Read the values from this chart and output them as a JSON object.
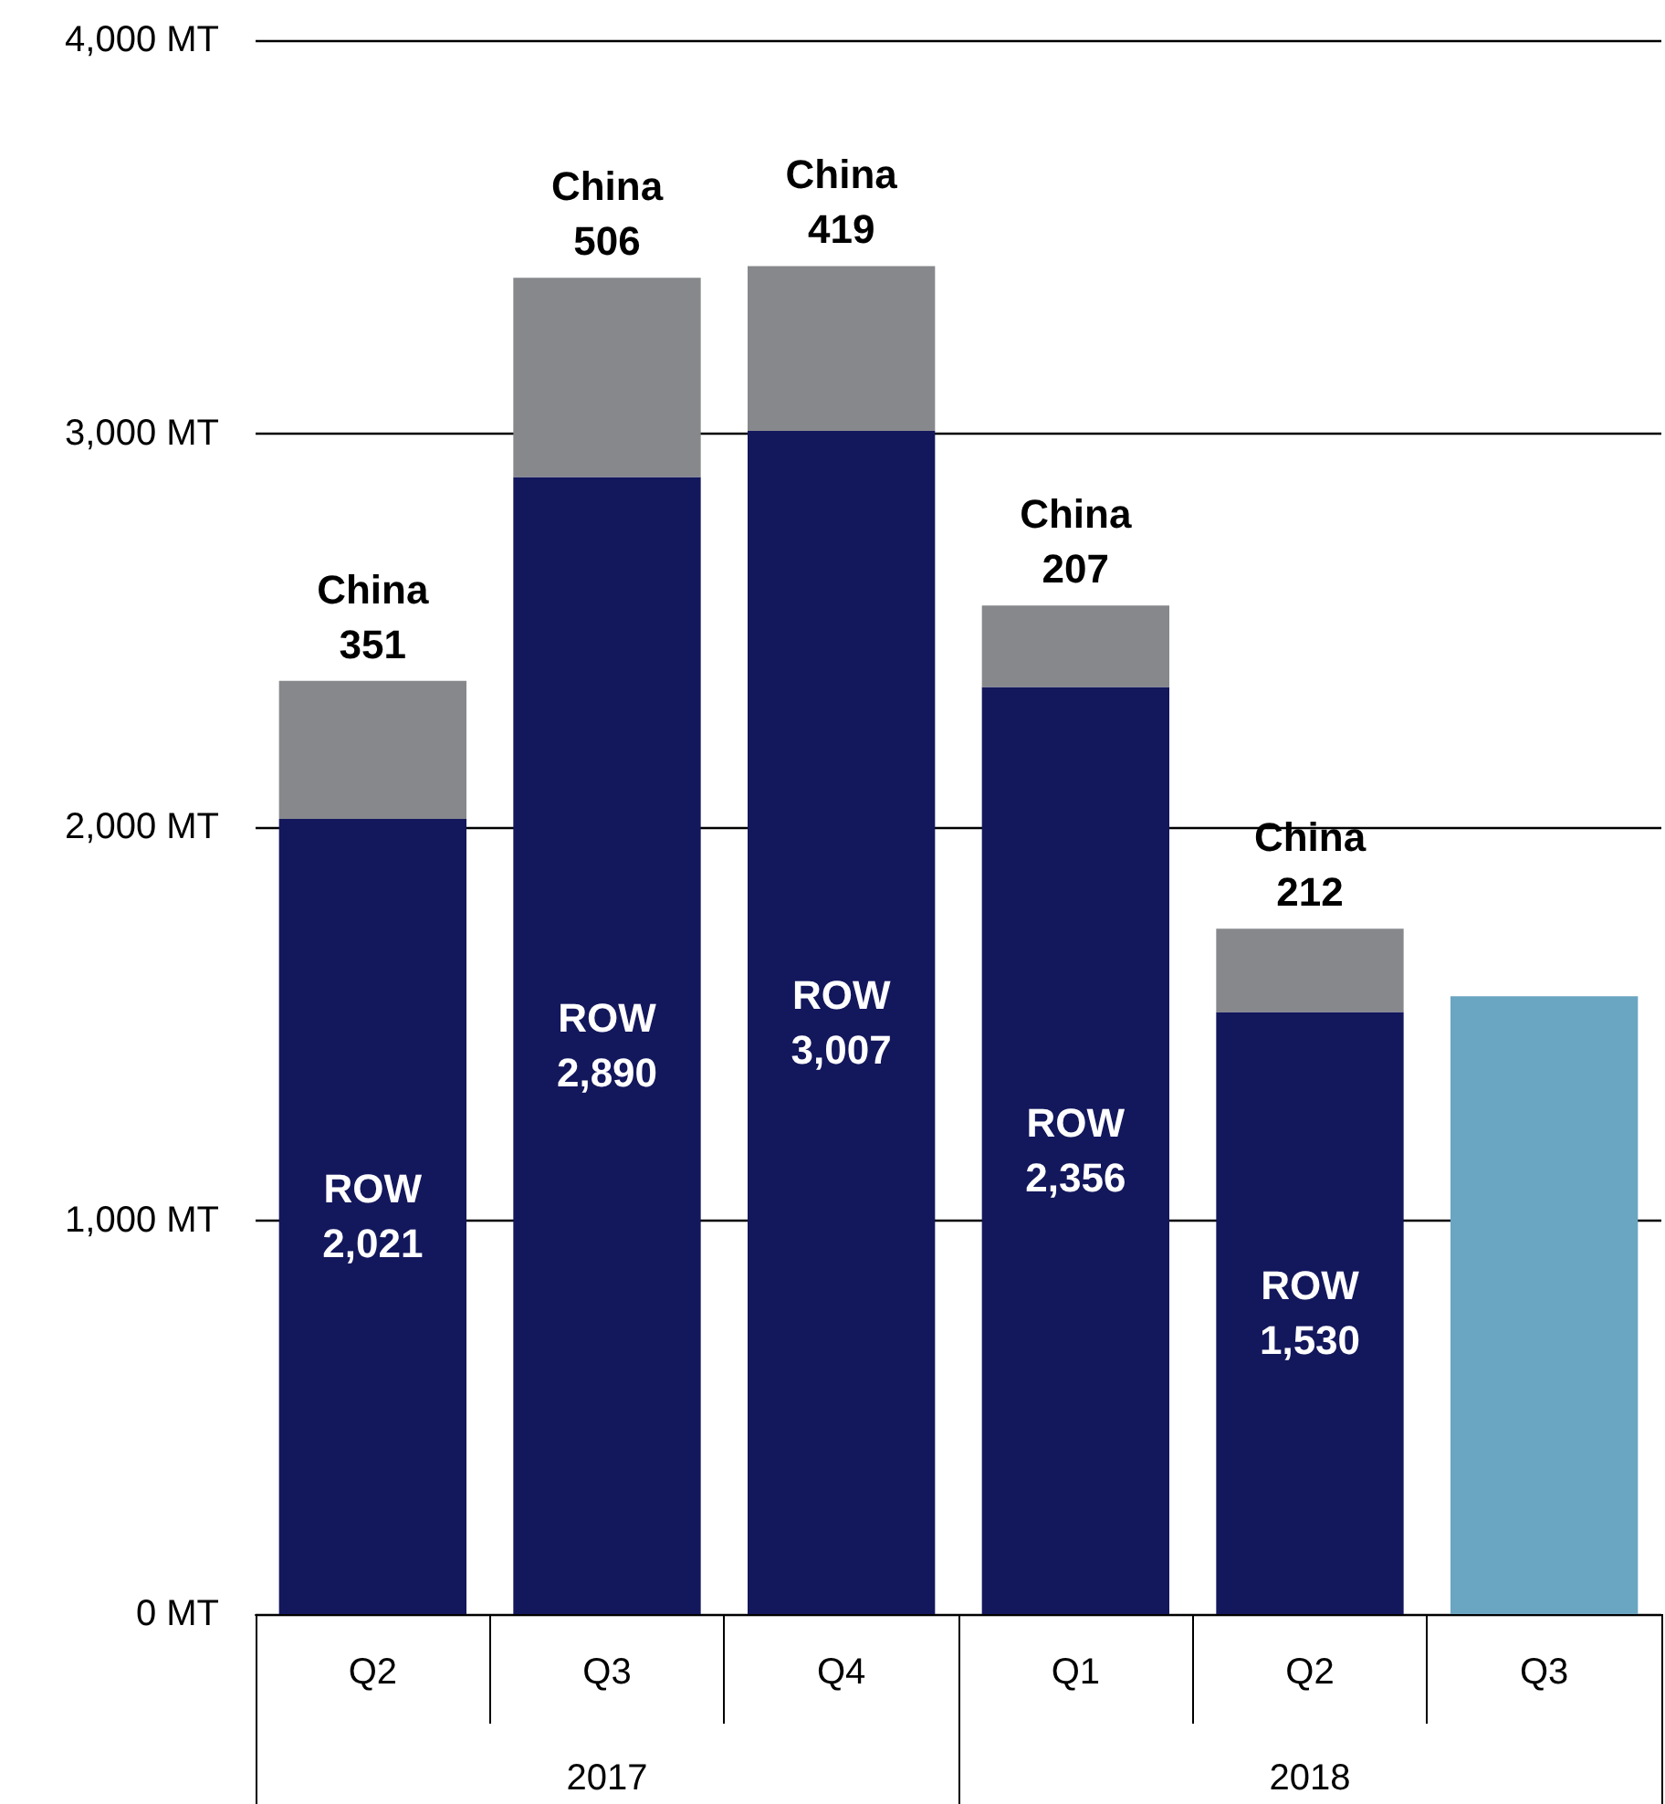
{
  "chart_data": {
    "type": "bar",
    "stacked": true,
    "categories": [
      "Q2",
      "Q3",
      "Q4",
      "Q1",
      "Q2",
      "Q3"
    ],
    "annotations": [
      "2017",
      "2018"
    ],
    "series": [
      {
        "name": "ROW",
        "color": "#13175c",
        "values": [
          2021,
          2890,
          3007,
          2356,
          1530,
          null
        ],
        "value_labels": [
          "2,021",
          "2,890",
          "3,007",
          "2,356",
          "1,530",
          null
        ]
      },
      {
        "name": "China",
        "color": "#87888c",
        "values": [
          351,
          506,
          419,
          207,
          212,
          null
        ],
        "value_labels": [
          "351",
          "506",
          "419",
          "207",
          "212",
          null
        ]
      },
      {
        "color": "#6aa5c1",
        "values": [
          null,
          null,
          null,
          null,
          null,
          1570
        ]
      }
    ],
    "ylim": [
      0,
      4000
    ],
    "yticks": [
      {
        "value": 0,
        "label": "0 MT"
      },
      {
        "value": 1000,
        "label": "1,000 MT"
      },
      {
        "value": 2000,
        "label": "2,000 MT"
      },
      {
        "value": 3000,
        "label": "3,000 MT"
      },
      {
        "value": 4000,
        "label": "4,000 MT"
      }
    ],
    "grid": "y",
    "legend": false
  }
}
